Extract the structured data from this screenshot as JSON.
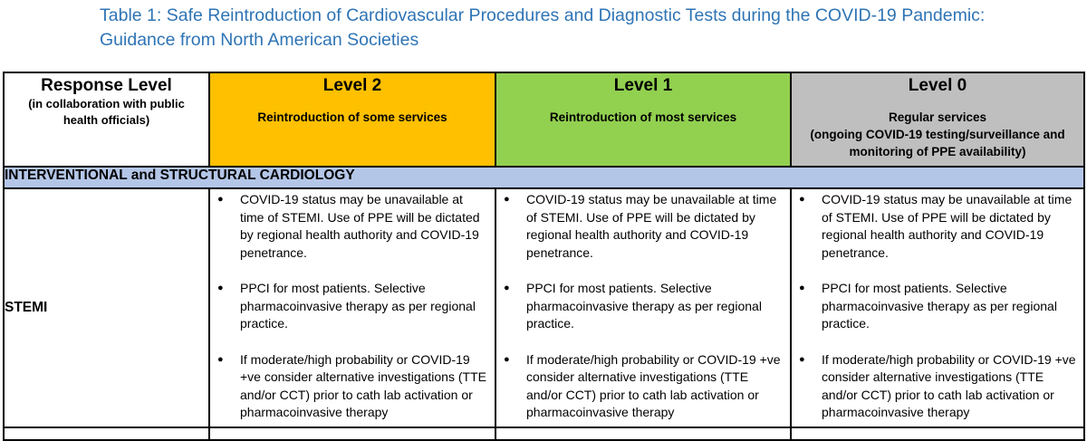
{
  "caption": {
    "line1": "Table 1: Safe Reintroduction of Cardiovascular Procedures and Diagnostic Tests during the COVID-19 Pandemic:",
    "line2": "Guidance from North American Societies"
  },
  "header": {
    "response": {
      "title": "Response Level",
      "sub_line1": "(in collaboration with public",
      "sub_line2": "health officials)"
    },
    "levels": [
      {
        "title": "Level 2",
        "sub_line1": "Reintroduction of some services",
        "sub_line2": "",
        "sub_line3": "",
        "color": "#ffc000"
      },
      {
        "title": "Level 1",
        "sub_line1": "Reintroduction of most services",
        "sub_line2": "",
        "sub_line3": "",
        "color": "#92d050"
      },
      {
        "title": "Level 0",
        "sub_line1": "Regular services",
        "sub_line2": "(ongoing COVID-19 testing/surveillance and",
        "sub_line3": "monitoring of PPE availability)",
        "color": "#bfbfbf"
      }
    ]
  },
  "section": {
    "label": "INTERVENTIONAL and STRUCTURAL CARDIOLOGY",
    "color": "#b4c6e7"
  },
  "row": {
    "label": "STEMI",
    "bullet_glyph": "●",
    "bullets": [
      "COVID-19 status may be unavailable at time of STEMI. Use of PPE will be dictated by regional health authority and COVID-19 penetrance.",
      "PPCI for most patients. Selective pharmacoinvasive therapy as per regional practice.",
      "If moderate/high probability or COVID-19 +ve consider alternative investigations (TTE and/or CCT) prior to cath lab activation or pharmacoinvasive therapy"
    ]
  }
}
